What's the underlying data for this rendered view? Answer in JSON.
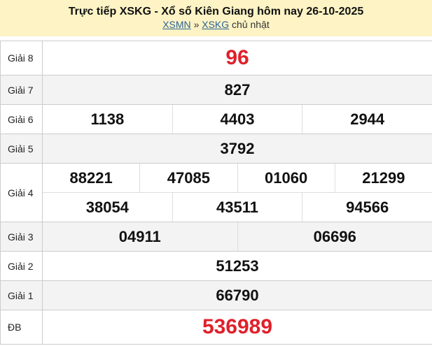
{
  "header": {
    "title": "Trực tiếp XSKG - Xổ số Kiên Giang hôm nay 26-10-2025",
    "breadcrumb": {
      "link1": "XSMN",
      "sep": "»",
      "link2": "XSKG",
      "day": "chủ nhật"
    }
  },
  "colors": {
    "header_bg": "#fdf3c5",
    "special": "#e0202a"
  },
  "prizes": [
    {
      "label": "Giải 8",
      "lines": [
        [
          "96"
        ]
      ],
      "highlight": true
    },
    {
      "label": "Giải 7",
      "lines": [
        [
          "827"
        ]
      ]
    },
    {
      "label": "Giải 6",
      "lines": [
        [
          "1138",
          "4403",
          "2944"
        ]
      ]
    },
    {
      "label": "Giải 5",
      "lines": [
        [
          "3792"
        ]
      ]
    },
    {
      "label": "Giải 4",
      "lines": [
        [
          "88221",
          "47085",
          "01060",
          "21299"
        ],
        [
          "38054",
          "43511",
          "94566"
        ]
      ]
    },
    {
      "label": "Giải 3",
      "lines": [
        [
          "04911",
          "06696"
        ]
      ]
    },
    {
      "label": "Giải 2",
      "lines": [
        [
          "51253"
        ]
      ]
    },
    {
      "label": "Giải 1",
      "lines": [
        [
          "66790"
        ]
      ]
    },
    {
      "label": "ĐB",
      "lines": [
        [
          "536989"
        ]
      ],
      "highlight": true
    }
  ]
}
